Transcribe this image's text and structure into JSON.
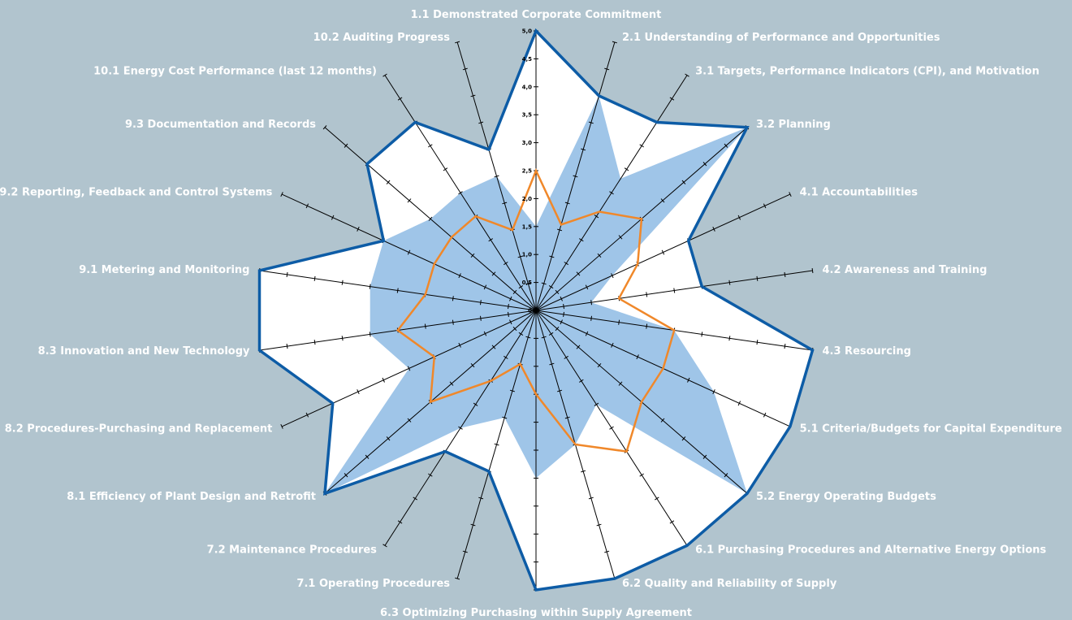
{
  "chart_data": {
    "type": "radar",
    "title": "",
    "rlim": [
      0,
      5
    ],
    "r_ticks": [
      "0",
      "0,5",
      "1,0",
      "1,5",
      "2,0",
      "2,5",
      "3,0",
      "3,5",
      "4,0",
      "4,5",
      "5,0"
    ],
    "categories": [
      "1.1 Demonstrated Corporate Commitment",
      "2.1 Understanding of Performance and Opportunities",
      "3.1 Targets, Performance Indicators (CPI), and Motivation",
      "3.2 Planning",
      "4.1 Accountabilities",
      "4.2 Awareness and Training",
      "4.3 Resourcing",
      "5.1 Criteria/Budgets for Capital Expenditure",
      "5.2 Energy Operating Budgets",
      "6.1 Purchasing Procedures and Alternative Energy Options",
      "6.2 Quality and Reliability of Supply",
      "6.3 Optimizing Purchasing within Supply Agreement",
      "7.1 Operating Procedures",
      "7.2 Maintenance Procedures",
      "8.1 Efficiency of Plant Design and Retrofit",
      "8.2 Procedures-Purchasing and Replacement",
      "8.3 Innovation and New Technology",
      "9.1 Metering and Monitoring",
      "9.2 Reporting, Feedback and Control Systems",
      "9.3 Documentation and Records",
      "10.1 Energy Cost Performance (last 12 months)",
      "10.2 Auditing Progress"
    ],
    "series": [
      {
        "style": "outline",
        "color": "#0d5ca6",
        "values": [
          5.0,
          4.0,
          4.0,
          5.0,
          3.0,
          3.0,
          5.0,
          5.0,
          5.0,
          5.0,
          5.0,
          5.0,
          3.0,
          3.0,
          5.0,
          4.0,
          5.0,
          5.0,
          3.0,
          4.0,
          4.0,
          3.0
        ]
      },
      {
        "style": "filled",
        "color": "#9fc5e8",
        "values": [
          1.5,
          4.0,
          2.8,
          5.0,
          1.5,
          1.0,
          2.5,
          3.5,
          5.0,
          2.0,
          2.5,
          3.0,
          2.0,
          2.5,
          5.0,
          2.5,
          3.0,
          3.0,
          3.0,
          2.5,
          2.5,
          2.5
        ]
      },
      {
        "style": "line",
        "color": "#f0882a",
        "values": [
          2.5,
          1.6,
          2.1,
          2.5,
          2.0,
          1.5,
          2.5,
          2.5,
          2.5,
          3.0,
          2.5,
          1.5,
          1.0,
          1.5,
          2.5,
          2.0,
          2.5,
          2.0,
          2.0,
          2.0,
          2.0,
          1.5
        ]
      }
    ],
    "colors": {
      "background": "#b1c4ce",
      "frame_fill": "#ffffff",
      "axis": "#000000",
      "label": "#ffffff"
    },
    "legend": "none",
    "grid": false
  }
}
